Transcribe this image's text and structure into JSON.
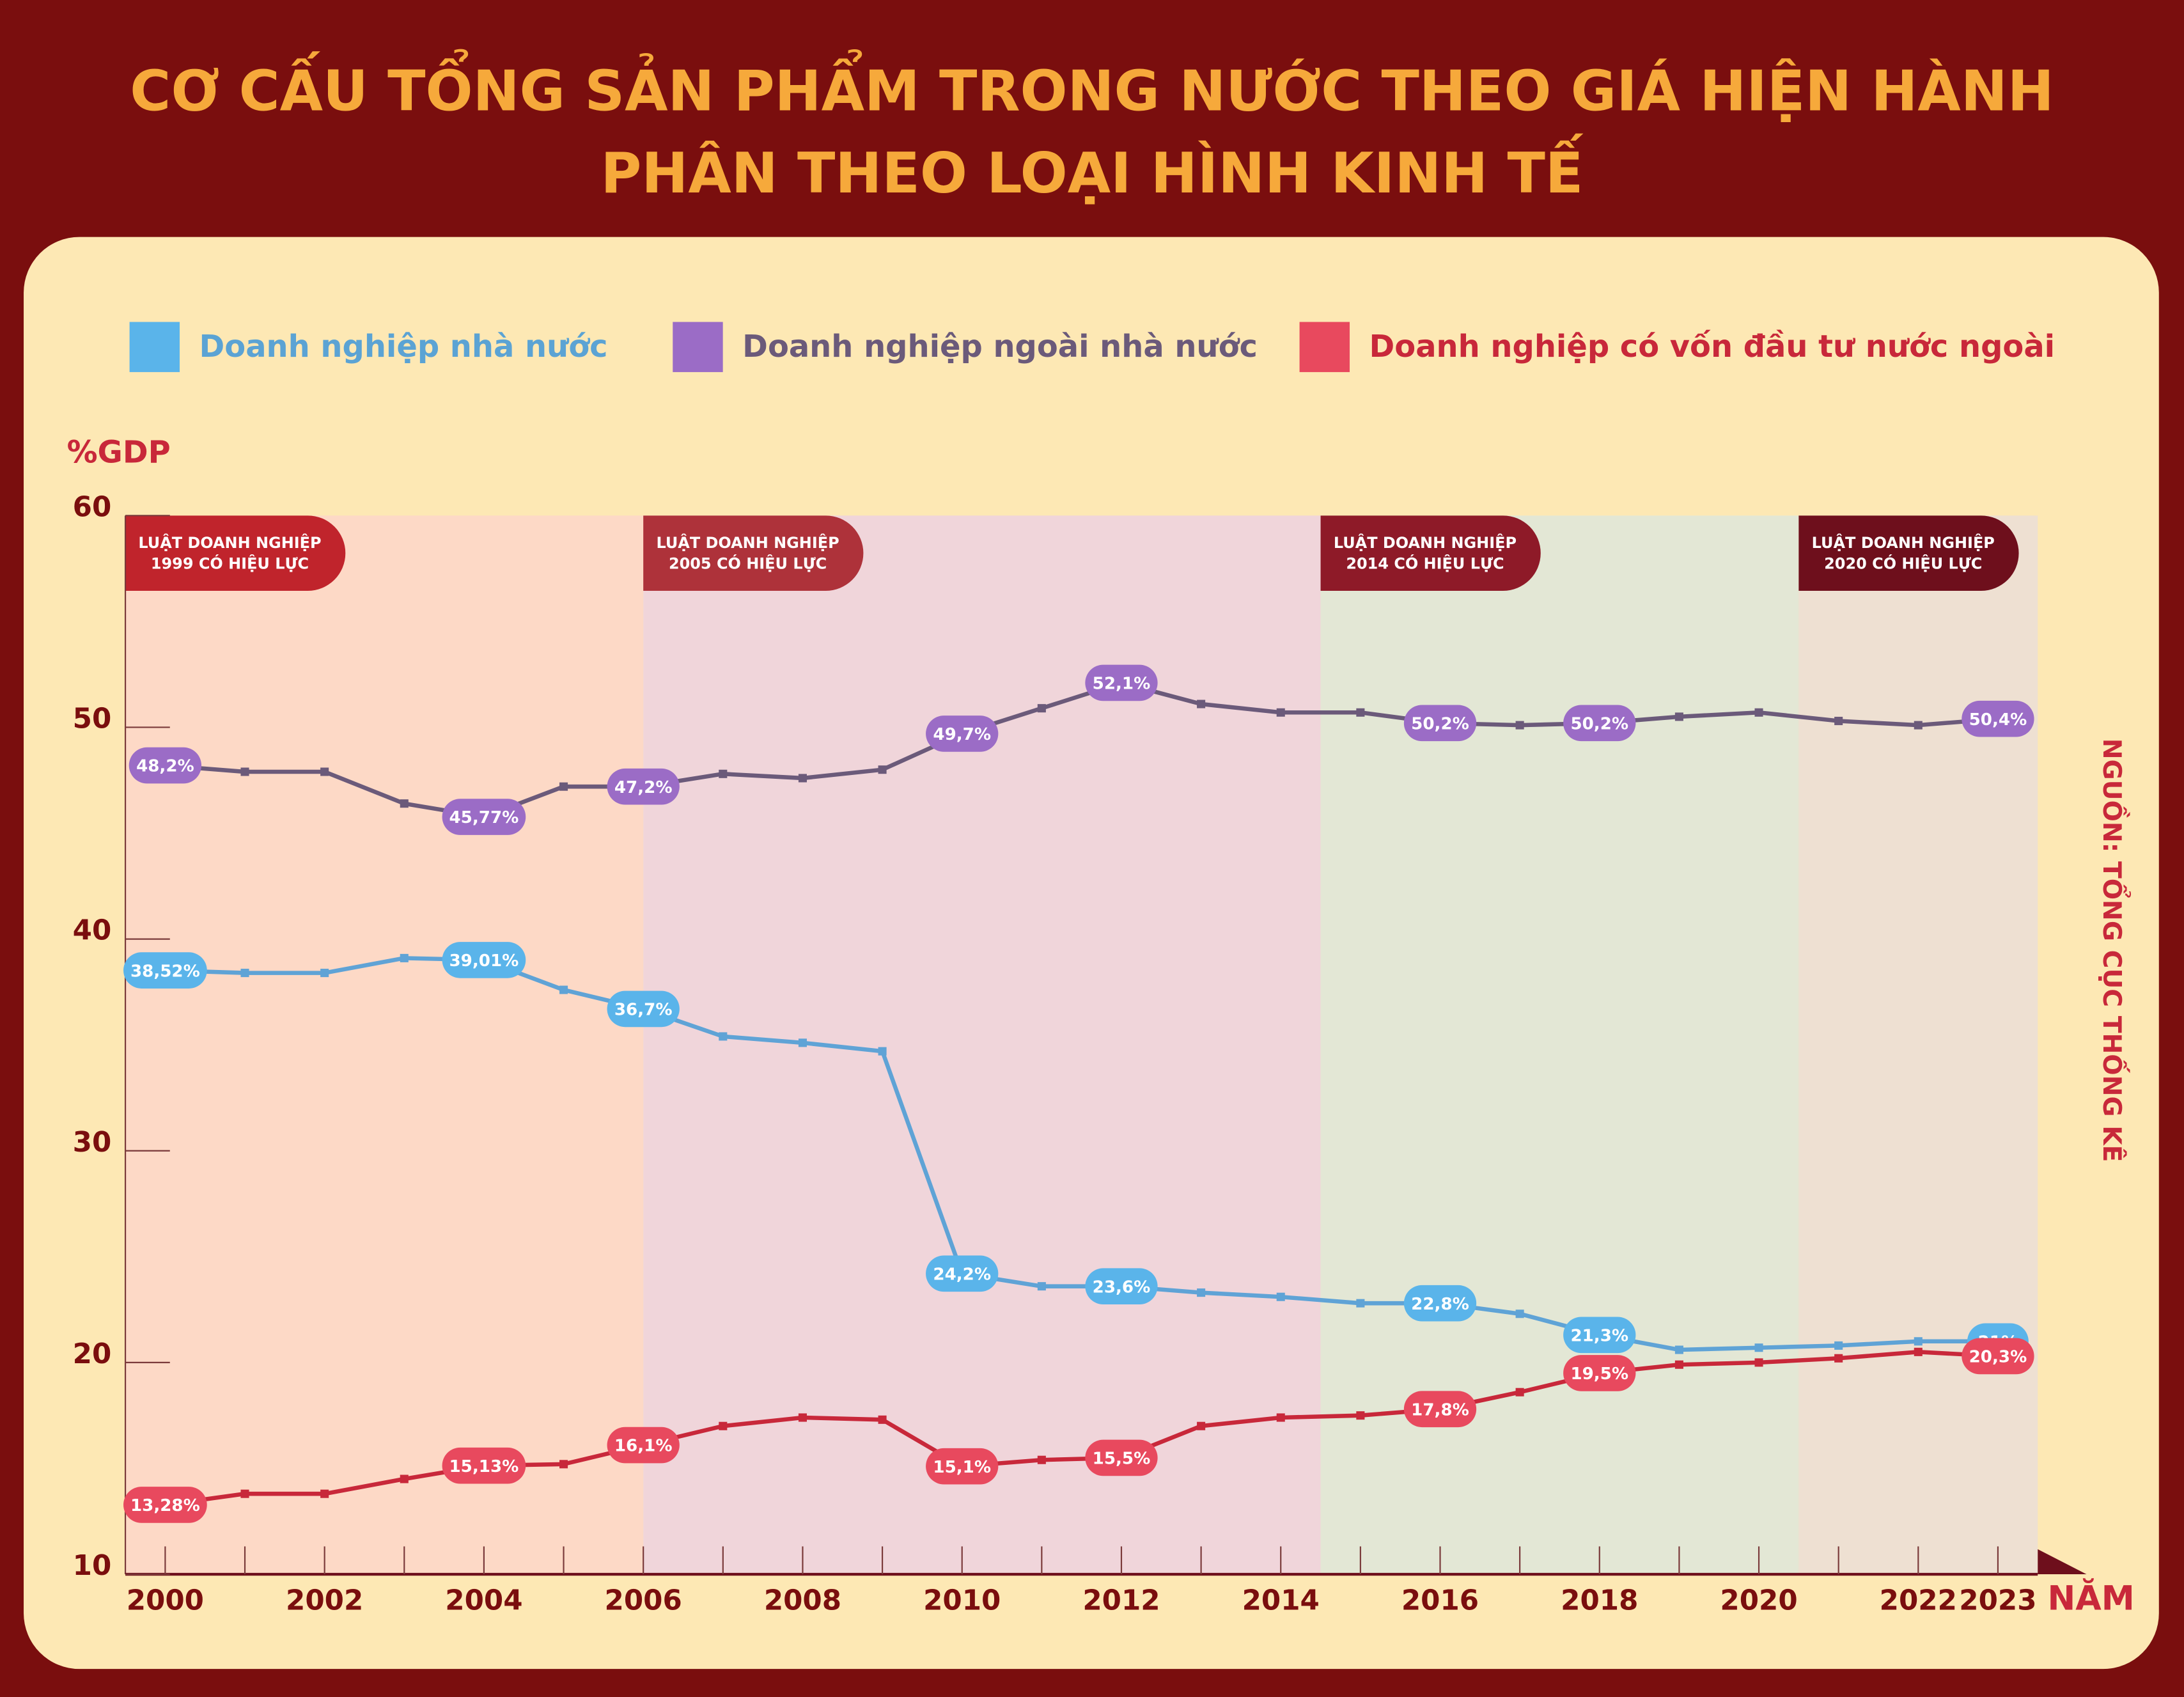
{
  "chart_data": {
    "type": "line",
    "title": [
      "CƠ CẤU TỔNG SẢN PHẨM TRONG NƯỚC THEO GIÁ HIỆN HÀNH",
      "PHÂN THEO LOẠI HÌNH KINH TẾ"
    ],
    "y_label": "%GDP",
    "x_label": "NĂM",
    "source": "NGUỒN: TỔNG CỤC THỐNG KÊ",
    "x": [
      2000,
      2001,
      2002,
      2003,
      2004,
      2005,
      2006,
      2007,
      2008,
      2009,
      2010,
      2011,
      2012,
      2013,
      2014,
      2015,
      2016,
      2017,
      2018,
      2019,
      2020,
      2021,
      2022,
      2023
    ],
    "xlim": [
      1999.5,
      2023.5
    ],
    "xticks": [
      2000,
      2002,
      2004,
      2006,
      2008,
      2010,
      2012,
      2014,
      2016,
      2018,
      2020,
      2022,
      2023
    ],
    "ylim": [
      10,
      60
    ],
    "yticks": [
      10,
      20,
      30,
      40,
      50,
      60
    ],
    "series": [
      {
        "name": "Doanh nghiệp nhà nước",
        "color": "#5ab4ea",
        "line_color": "#5fa3d6",
        "text_color": "#5ba3d4",
        "values": [
          38.52,
          38.4,
          38.4,
          39.1,
          39.01,
          37.6,
          36.7,
          35.4,
          35.1,
          34.7,
          24.2,
          23.6,
          23.6,
          23.3,
          23.1,
          22.8,
          22.8,
          22.3,
          21.3,
          20.6,
          20.7,
          20.8,
          21.0,
          21
        ],
        "value_labels": [
          "38,52%",
          null,
          null,
          null,
          "39,01%",
          null,
          "36,7%",
          null,
          null,
          null,
          "24,2%",
          null,
          "23,6%",
          null,
          null,
          null,
          "22,8%",
          null,
          "21,3%",
          null,
          null,
          null,
          null,
          "21%"
        ]
      },
      {
        "name": "Doanh nghiệp ngoài nhà nước",
        "color": "#9b6cc6",
        "line_color": "#6b5a7a",
        "text_color": "#6b5a7a",
        "values": [
          48.2,
          47.9,
          47.9,
          46.4,
          45.77,
          47.2,
          47.2,
          47.8,
          47.6,
          48.0,
          49.7,
          50.9,
          52.1,
          51.1,
          50.7,
          50.7,
          50.2,
          50.1,
          50.2,
          50.5,
          50.7,
          50.3,
          50.1,
          50.4
        ],
        "value_labels": [
          "48,2%",
          null,
          null,
          null,
          "45,77%",
          null,
          "47,2%",
          null,
          null,
          null,
          "49,7%",
          null,
          "52,1%",
          null,
          null,
          null,
          "50,2%",
          null,
          "50,2%",
          null,
          null,
          null,
          null,
          "50,4%"
        ]
      },
      {
        "name": "Doanh nghiệp có vốn đầu tư nước ngoài",
        "color": "#e8495e",
        "line_color": "#c8283a",
        "text_color": "#c8283a",
        "values": [
          13.28,
          13.8,
          13.8,
          14.5,
          15.13,
          15.2,
          16.1,
          17.0,
          17.4,
          17.3,
          15.1,
          15.4,
          15.5,
          17.0,
          17.4,
          17.5,
          17.8,
          18.6,
          19.5,
          19.9,
          20.0,
          20.2,
          20.5,
          20.3
        ],
        "value_labels": [
          "13,28%",
          null,
          null,
          null,
          "15,13%",
          null,
          "16,1%",
          null,
          null,
          null,
          "15,1%",
          null,
          "15,5%",
          null,
          null,
          null,
          "17,8%",
          null,
          "19,5%",
          null,
          null,
          null,
          null,
          "20,3%"
        ]
      }
    ],
    "periods": [
      {
        "start": 1999.5,
        "end": 2006,
        "label": [
          "LUẬT DOANH NGHIỆP",
          "1999 CÓ HIỆU LỰC"
        ],
        "color": "#fdd9c6",
        "label_color": "#c0242c"
      },
      {
        "start": 2006,
        "end": 2014.5,
        "label": [
          "LUẬT DOANH NGHIỆP",
          "2005 CÓ HIỆU LỰC"
        ],
        "color": "#f0d5da",
        "label_color": "#ae323a"
      },
      {
        "start": 2014.5,
        "end": 2020.5,
        "label": [
          "LUẬT DOANH NGHIỆP",
          "2014 CÓ HIỆU LỰC"
        ],
        "color": "#e3e7d5",
        "label_color": "#8e1a28"
      },
      {
        "start": 2020.5,
        "end": 2023.5,
        "label": [
          "LUẬT DOANH NGHIỆP",
          "2020 CÓ HIỆU LỰC"
        ],
        "color": "#eee0d2",
        "label_color": "#6e0f1c"
      }
    ]
  }
}
